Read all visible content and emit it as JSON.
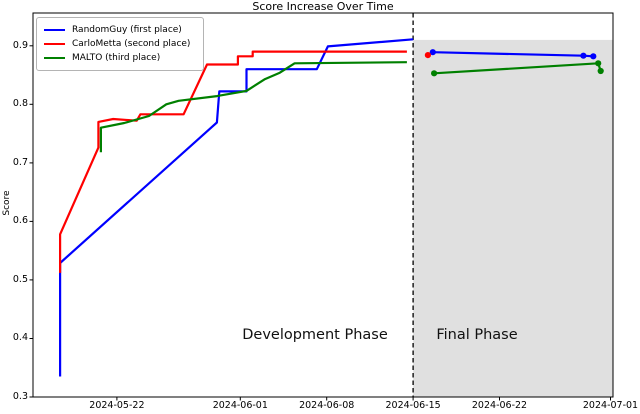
{
  "title": "Score Increase Over Time",
  "ylabel": "Score",
  "annotations": {
    "development_phase": "Development Phase",
    "final_phase": "Final Phase"
  },
  "legend": {
    "items": [
      {
        "label": "RandomGuy (first place)",
        "color": "#0000ff"
      },
      {
        "label": "CarloMetta (second place)",
        "color": "#ff0000"
      },
      {
        "label": "MALTO (third place)",
        "color": "#008000"
      }
    ]
  },
  "chart_data": {
    "type": "line",
    "title": "Score Increase Over Time",
    "xlabel": "",
    "ylabel": "Score",
    "x_axis": {
      "unit": "days_since_2024-05-22",
      "range": [
        -6.8,
        40.2
      ],
      "ticks": [
        {
          "day": 0,
          "label": "2024-05-22"
        },
        {
          "day": 10,
          "label": "2024-06-01"
        },
        {
          "day": 17,
          "label": "2024-06-08"
        },
        {
          "day": 24,
          "label": "2024-06-15"
        },
        {
          "day": 31,
          "label": "2024-06-22"
        },
        {
          "day": 40,
          "label": "2024-07-01"
        }
      ]
    },
    "y_axis": {
      "range": [
        0.3,
        0.956
      ],
      "ticks": [
        0.3,
        0.4,
        0.5,
        0.6,
        0.7,
        0.8,
        0.9
      ]
    },
    "grid": false,
    "legend_position": "upper-left",
    "phase_divider_day": 24,
    "final_phase_region": {
      "x_start_day": 24,
      "x_end_day": 40.2,
      "y_top": 0.91,
      "color": "#e0e0e0"
    },
    "series": [
      {
        "name": "RandomGuy (first place)",
        "color": "#0000ff",
        "segments": [
          {
            "markers": false,
            "points": [
              [
                -4.6,
                0.335
              ],
              [
                -4.6,
                0.529
              ],
              [
                8.1,
                0.769
              ],
              [
                8.3,
                0.822
              ],
              [
                10.5,
                0.822
              ],
              [
                10.5,
                0.86
              ],
              [
                16.2,
                0.86
              ],
              [
                17.1,
                0.899
              ],
              [
                24.0,
                0.911
              ]
            ]
          },
          {
            "markers": true,
            "points": [
              [
                25.6,
                0.889
              ],
              [
                37.8,
                0.883
              ],
              [
                38.6,
                0.882
              ]
            ]
          }
        ]
      },
      {
        "name": "CarloMetta (second place)",
        "color": "#ff0000",
        "segments": [
          {
            "markers": false,
            "points": [
              [
                -4.6,
                0.512
              ],
              [
                -4.6,
                0.578
              ],
              [
                -1.5,
                0.726
              ],
              [
                -1.5,
                0.77
              ],
              [
                -0.3,
                0.775
              ],
              [
                1.6,
                0.772
              ],
              [
                1.9,
                0.783
              ],
              [
                5.4,
                0.783
              ],
              [
                7.3,
                0.868
              ],
              [
                9.8,
                0.868
              ],
              [
                9.8,
                0.882
              ],
              [
                11.0,
                0.882
              ],
              [
                11.0,
                0.89
              ],
              [
                23.5,
                0.89
              ]
            ]
          },
          {
            "markers": true,
            "points": [
              [
                25.2,
                0.884
              ]
            ]
          }
        ]
      },
      {
        "name": "MALTO (third place)",
        "color": "#008000",
        "segments": [
          {
            "markers": false,
            "points": [
              [
                -1.3,
                0.718
              ],
              [
                -1.3,
                0.76
              ],
              [
                0.6,
                0.768
              ],
              [
                2.6,
                0.78
              ],
              [
                4.0,
                0.8
              ],
              [
                5.0,
                0.806
              ],
              [
                8.1,
                0.814
              ],
              [
                10.5,
                0.823
              ],
              [
                12.0,
                0.843
              ],
              [
                13.2,
                0.854
              ],
              [
                14.4,
                0.87
              ],
              [
                23.5,
                0.872
              ]
            ]
          },
          {
            "markers": true,
            "points": [
              [
                25.7,
                0.853
              ],
              [
                39.0,
                0.87
              ],
              [
                39.2,
                0.857
              ]
            ]
          }
        ]
      }
    ]
  }
}
